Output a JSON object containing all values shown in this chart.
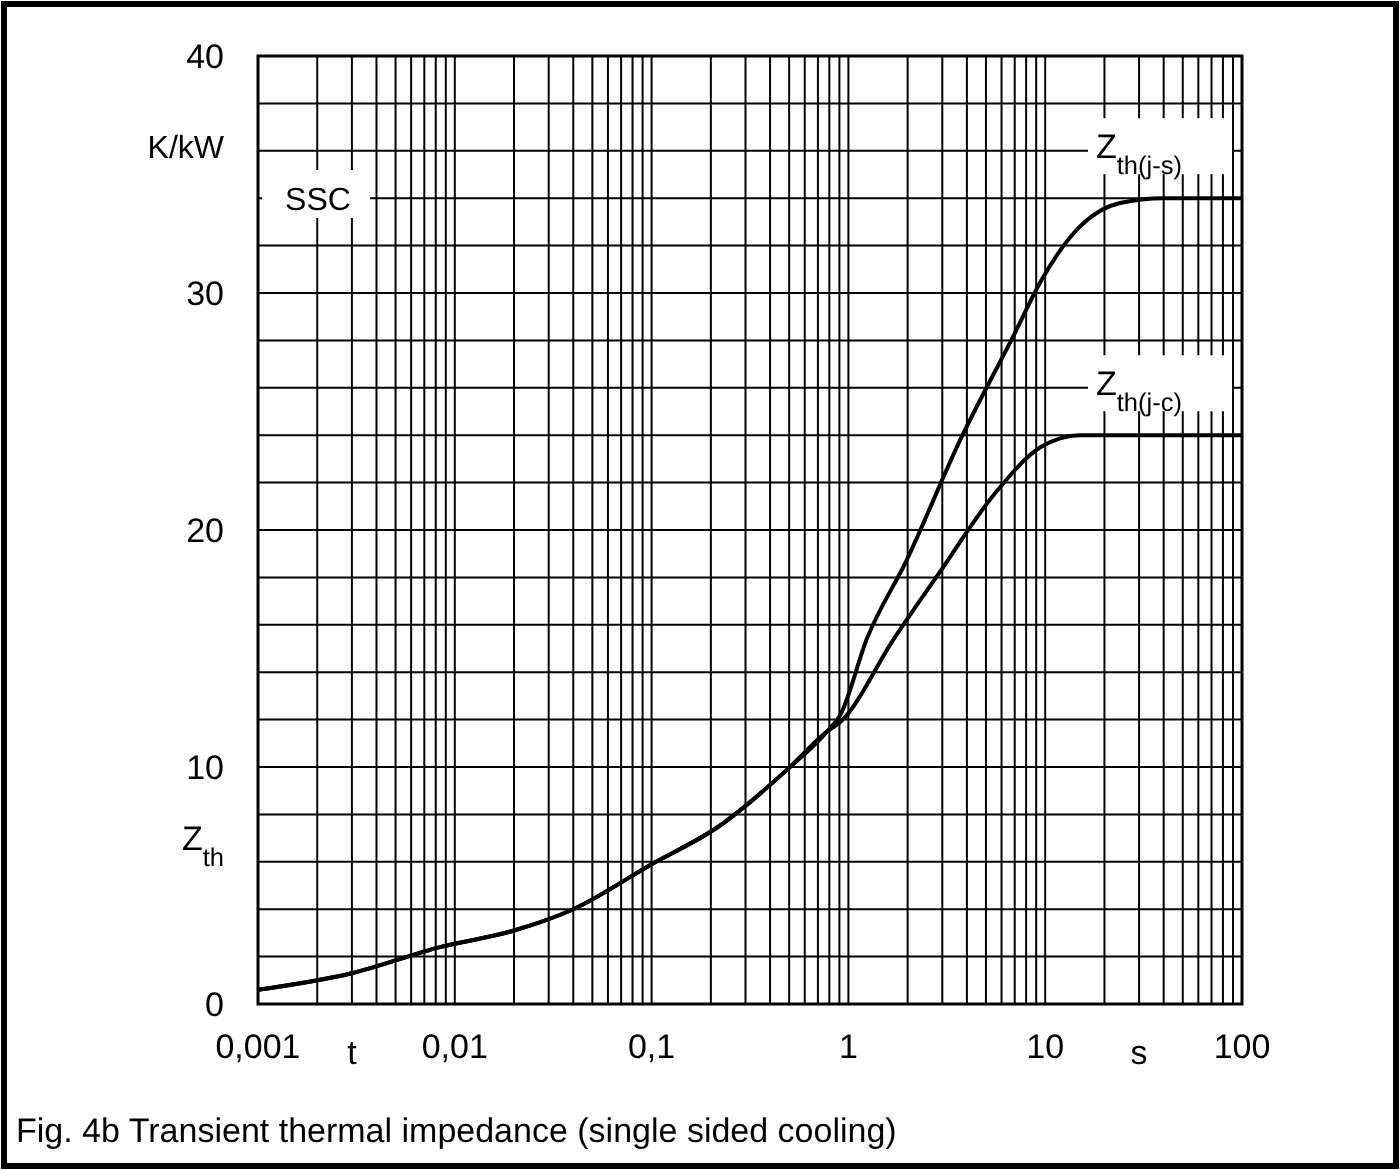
{
  "chart_data": {
    "type": "line",
    "title": "Fig. 4b Transient thermal impedance (single sided cooling)",
    "xlabel": "t",
    "ylabel": "Z$_{th}$",
    "annotations": [
      "K/kW",
      "s",
      "SSC"
    ],
    "log": "x",
    "grid": true,
    "marker": "none",
    "line_style": "solid",
    "xlim": [
      0.001,
      100
    ],
    "ylim": [
      0,
      40
    ],
    "xticks": [
      {
        "value": 0.001,
        "label": "0,001"
      },
      {
        "value": 0.002,
        "label": null
      },
      {
        "value": 0.003,
        "label": null
      },
      {
        "value": 0.004,
        "label": null
      },
      {
        "value": 0.005,
        "label": null
      },
      {
        "value": 0.006,
        "label": null
      },
      {
        "value": 0.007,
        "label": null
      },
      {
        "value": 0.008,
        "label": null
      },
      {
        "value": 0.009,
        "label": null
      },
      {
        "value": 0.01,
        "label": "0,01"
      },
      {
        "value": 0.02,
        "label": null
      },
      {
        "value": 0.03,
        "label": null
      },
      {
        "value": 0.04,
        "label": null
      },
      {
        "value": 0.05,
        "label": null
      },
      {
        "value": 0.06,
        "label": null
      },
      {
        "value": 0.07,
        "label": null
      },
      {
        "value": 0.08,
        "label": null
      },
      {
        "value": 0.09,
        "label": null
      },
      {
        "value": 0.1,
        "label": "0,1"
      },
      {
        "value": 0.2,
        "label": null
      },
      {
        "value": 0.3,
        "label": null
      },
      {
        "value": 0.4,
        "label": null
      },
      {
        "value": 0.5,
        "label": null
      },
      {
        "value": 0.6,
        "label": null
      },
      {
        "value": 0.7,
        "label": null
      },
      {
        "value": 0.8,
        "label": null
      },
      {
        "value": 0.9,
        "label": null
      },
      1,
      {
        "value": 2,
        "label": null
      },
      {
        "value": 3,
        "label": null
      },
      {
        "value": 4,
        "label": null
      },
      {
        "value": 5,
        "label": null
      },
      {
        "value": 6,
        "label": null
      },
      {
        "value": 7,
        "label": null
      },
      {
        "value": 8,
        "label": null
      },
      {
        "value": 9,
        "label": null
      },
      10,
      {
        "value": 20,
        "label": null
      },
      {
        "value": 30,
        "label": null
      },
      {
        "value": 40,
        "label": null
      },
      {
        "value": 50,
        "label": null
      },
      {
        "value": 60,
        "label": null
      },
      {
        "value": 70,
        "label": null
      },
      {
        "value": 80,
        "label": null
      },
      {
        "value": 90,
        "label": null
      },
      100
    ],
    "yticks": [
      0,
      {
        "value": 2,
        "label": null
      },
      {
        "value": 4,
        "label": null
      },
      {
        "value": 6,
        "label": null
      },
      {
        "value": 8,
        "label": null
      },
      10,
      {
        "value": 12,
        "label": null
      },
      {
        "value": 14,
        "label": null
      },
      {
        "value": 16,
        "label": null
      },
      {
        "value": 18,
        "label": null
      },
      20,
      {
        "value": 22,
        "label": null
      },
      {
        "value": 24,
        "label": null
      },
      {
        "value": 26,
        "label": null
      },
      {
        "value": 28,
        "label": null
      },
      30,
      {
        "value": 32,
        "label": null
      },
      {
        "value": 34,
        "label": null
      },
      {
        "value": 36,
        "label": null
      },
      {
        "value": 38,
        "label": null
      },
      40
    ],
    "series": [
      {
        "name": "Z$_{th(j-s)}$",
        "color": "#000000",
        "x": [
          0.001,
          0.003,
          0.0084,
          0.02,
          0.04,
          0.1,
          0.22,
          0.49,
          0.78,
          0.91,
          1.24,
          1.97,
          3.7,
          7,
          9.5,
          15,
          24,
          40,
          100
        ],
        "values": [
          0.6,
          1.3,
          2.4,
          3.1,
          4,
          5.9,
          7.5,
          9.9,
          11.5,
          12.2,
          15.4,
          18.7,
          23.8,
          28.3,
          30.5,
          32.8,
          33.8,
          34,
          34
        ]
      },
      {
        "name": "Z$_{th(j-c)}$",
        "color": "#000000",
        "x": [
          0.001,
          0.003,
          0.0084,
          0.02,
          0.04,
          0.1,
          0.22,
          0.49,
          0.78,
          0.91,
          1.7,
          2.9,
          5.5,
          9.5,
          15,
          30,
          100
        ],
        "values": [
          0.6,
          1.3,
          2.4,
          3.1,
          4,
          5.9,
          7.5,
          9.9,
          11.5,
          11.9,
          15.4,
          18.2,
          21.5,
          23.5,
          24,
          24,
          24
        ]
      }
    ]
  }
}
